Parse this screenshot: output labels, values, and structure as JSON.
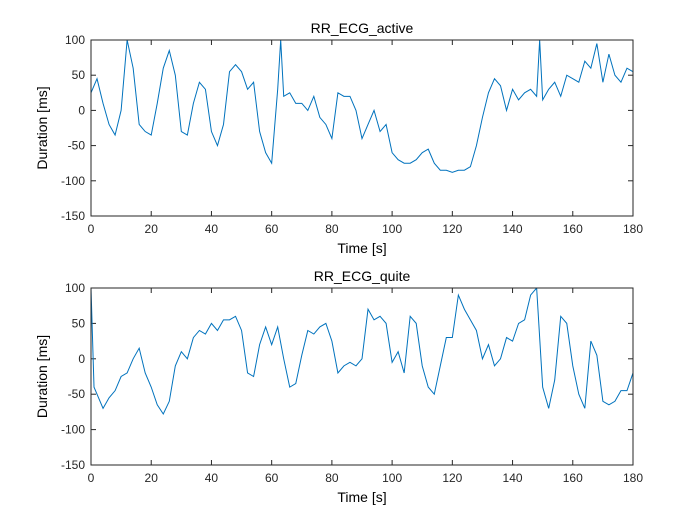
{
  "chart_data": [
    {
      "type": "line",
      "title": "RR_ECG_active",
      "xlabel": "Time [s]",
      "ylabel": "Duration [ms]",
      "xlim": [
        0,
        180
      ],
      "ylim": [
        -150,
        100
      ],
      "xticks": [
        0,
        20,
        40,
        60,
        80,
        100,
        120,
        140,
        160,
        180
      ],
      "yticks": [
        -150,
        -100,
        -50,
        0,
        50,
        100
      ],
      "x": [
        0,
        2,
        4,
        6,
        8,
        10,
        12,
        14,
        16,
        18,
        20,
        22,
        24,
        26,
        28,
        30,
        32,
        34,
        36,
        38,
        40,
        42,
        44,
        46,
        48,
        50,
        52,
        54,
        56,
        58,
        60,
        62,
        63,
        64,
        66,
        68,
        70,
        72,
        74,
        76,
        78,
        80,
        82,
        84,
        86,
        88,
        90,
        92,
        94,
        96,
        98,
        100,
        102,
        104,
        106,
        108,
        110,
        112,
        114,
        116,
        118,
        120,
        122,
        124,
        126,
        128,
        130,
        132,
        134,
        136,
        138,
        140,
        142,
        144,
        146,
        148,
        149,
        150,
        152,
        154,
        156,
        158,
        160,
        162,
        164,
        166,
        168,
        170,
        172,
        174,
        176,
        178,
        180
      ],
      "series": [
        {
          "name": "RR_ECG_active",
          "color": "#0072bd",
          "values": [
            25,
            45,
            10,
            -20,
            -35,
            0,
            100,
            60,
            -20,
            -30,
            -35,
            10,
            60,
            85,
            50,
            -30,
            -35,
            10,
            40,
            30,
            -30,
            -50,
            -20,
            55,
            65,
            55,
            30,
            40,
            -30,
            -60,
            -75,
            30,
            100,
            20,
            25,
            10,
            10,
            0,
            20,
            -10,
            -20,
            -40,
            25,
            20,
            20,
            0,
            -40,
            -20,
            0,
            -30,
            -20,
            -60,
            -70,
            -75,
            -75,
            -70,
            -60,
            -55,
            -75,
            -85,
            -85,
            -88,
            -85,
            -85,
            -80,
            -50,
            -10,
            25,
            45,
            35,
            0,
            30,
            15,
            25,
            30,
            20,
            100,
            15,
            30,
            40,
            20,
            50,
            45,
            40,
            70,
            60,
            95,
            40,
            80,
            50,
            40,
            60,
            55
          ]
        }
      ]
    },
    {
      "type": "line",
      "title": "RR_ECG_quite",
      "xlabel": "Time [s]",
      "ylabel": "Duration [ms]",
      "xlim": [
        0,
        180
      ],
      "ylim": [
        -150,
        100
      ],
      "xticks": [
        0,
        20,
        40,
        60,
        80,
        100,
        120,
        140,
        160,
        180
      ],
      "yticks": [
        -150,
        -100,
        -50,
        0,
        50,
        100
      ],
      "x": [
        0,
        1,
        2,
        4,
        6,
        8,
        10,
        12,
        14,
        16,
        18,
        20,
        22,
        24,
        26,
        28,
        30,
        32,
        34,
        36,
        38,
        40,
        42,
        44,
        46,
        48,
        50,
        52,
        54,
        56,
        58,
        60,
        62,
        64,
        66,
        68,
        70,
        72,
        74,
        76,
        78,
        80,
        82,
        84,
        86,
        88,
        90,
        92,
        94,
        96,
        98,
        100,
        102,
        104,
        106,
        108,
        110,
        112,
        114,
        116,
        118,
        120,
        122,
        124,
        126,
        128,
        130,
        132,
        134,
        136,
        138,
        140,
        142,
        144,
        146,
        148,
        150,
        152,
        154,
        156,
        158,
        160,
        162,
        164,
        166,
        168,
        170,
        172,
        174,
        176,
        178,
        180
      ],
      "series": [
        {
          "name": "RR_ECG_quite",
          "color": "#0072bd",
          "values": [
            100,
            -40,
            -50,
            -70,
            -55,
            -45,
            -25,
            -20,
            0,
            15,
            -20,
            -40,
            -65,
            -78,
            -60,
            -10,
            10,
            0,
            30,
            40,
            35,
            50,
            40,
            55,
            55,
            60,
            40,
            -20,
            -25,
            20,
            45,
            20,
            45,
            0,
            -40,
            -35,
            5,
            40,
            35,
            45,
            50,
            25,
            -20,
            -10,
            -5,
            -10,
            0,
            70,
            55,
            60,
            50,
            -5,
            10,
            -20,
            60,
            50,
            -10,
            -40,
            -50,
            -10,
            30,
            30,
            90,
            70,
            55,
            40,
            0,
            20,
            -10,
            0,
            30,
            25,
            50,
            55,
            90,
            100,
            -40,
            -70,
            -30,
            60,
            50,
            -10,
            -50,
            -70,
            25,
            5,
            -60,
            -65,
            -60,
            -45,
            -45,
            -20
          ]
        }
      ]
    }
  ]
}
